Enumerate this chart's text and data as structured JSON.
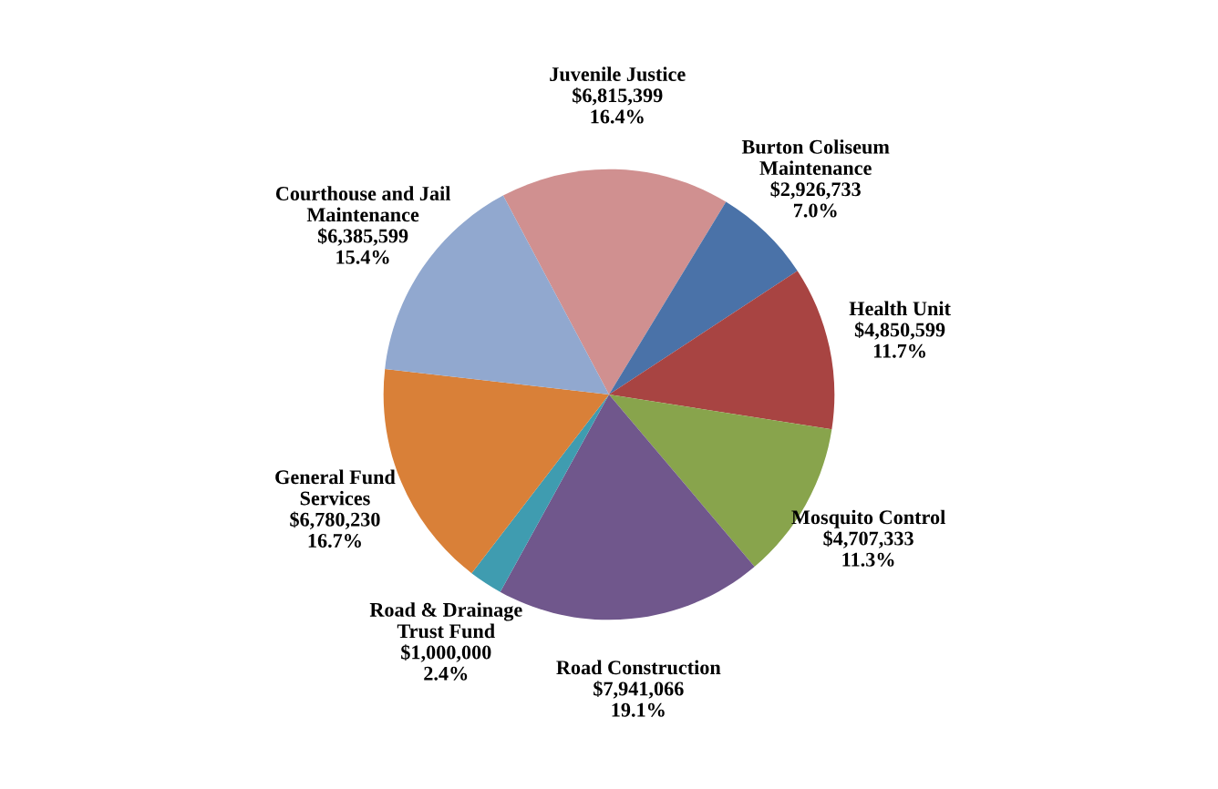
{
  "chart_data": {
    "type": "pie",
    "categories": [
      "Juvenile Justice",
      "Burton Coliseum\nMaintenance",
      "Health Unit",
      "Mosquito Control",
      "Road Construction",
      "Road & Drainage\nTrust Fund",
      "General Fund\nServices",
      "Courthouse and Jail\nMaintenance"
    ],
    "values": [
      6815399,
      2926733,
      4850599,
      4707333,
      7941066,
      1000000,
      6780230,
      6385599
    ],
    "value_labels": [
      "$6,815,399\n16.4%",
      "$2,926,733\n7.0%",
      "$4,850,599\n11.7%",
      "$4,707,333\n11.3%",
      "$7,941,066\n19.1%",
      "$1,000,000\n2.4%",
      "$6,780,230\n16.7%",
      "$6,385,599\n15.4%"
    ],
    "colors": [
      "#d09090",
      "#4a72a8",
      "#a84442",
      "#88a44c",
      "#70578c",
      "#3f9cb0",
      "#d98038",
      "#91a8cf"
    ]
  }
}
